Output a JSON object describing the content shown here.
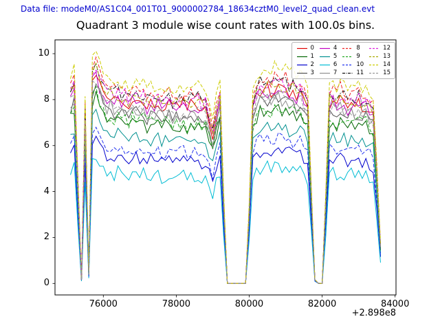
{
  "header": {
    "data_file_text": "Data file: modeM0/AS1C04_001T01_9000002784_18634cztM0_level2_quad_clean.evt",
    "data_file_color": "#0000cd"
  },
  "chart_data": {
    "type": "line",
    "title": "Quadrant 3 module wise count rates with 100.0s bins.",
    "xlabel": "",
    "ylabel": "",
    "x_offset_text": "+2.898e8",
    "xticks": [
      76000,
      78000,
      80000,
      82000,
      84000
    ],
    "yticks": [
      0,
      2,
      4,
      6,
      8,
      10
    ],
    "xlim": [
      74675,
      84025
    ],
    "ylim": [
      -0.5,
      10.6
    ],
    "grid": false,
    "legend_position": "upper right",
    "legend_columns": 4,
    "x_start": 75100,
    "x_step": 100,
    "noise_amplitude": 0.3,
    "profile": [
      1.02,
      1.06,
      0.55,
      0.02,
      0.9,
      0.05,
      1.12,
      1.16,
      1.08,
      1.03,
      1.0,
      1.02,
      0.99,
      1.01,
      0.98,
      1.0,
      0.97,
      1.0,
      0.99,
      0.97,
      0.99,
      0.96,
      0.98,
      0.97,
      0.99,
      0.96,
      0.97,
      0.98,
      0.95,
      0.97,
      0.96,
      0.98,
      0.95,
      0.97,
      0.96,
      0.97,
      0.95,
      0.96,
      0.88,
      0.8,
      0.92,
      1.0,
      0.45,
      0.0,
      0.0,
      0.0,
      0.0,
      0.0,
      0.0,
      0.4,
      0.95,
      1.02,
      1.05,
      1.03,
      1.06,
      1.04,
      1.07,
      1.08,
      1.05,
      1.06,
      1.03,
      1.05,
      1.02,
      1.04,
      1.0,
      0.95,
      0.5,
      0.02,
      0.0,
      0.0,
      0.45,
      0.98,
      1.0,
      0.97,
      1.0,
      0.98,
      0.96,
      0.99,
      0.97,
      0.98,
      0.96,
      0.97,
      0.95,
      0.92,
      0.6,
      0.2
    ],
    "series": [
      {
        "name": "0",
        "color": "#dd0000",
        "style": "solid",
        "level": 8.0
      },
      {
        "name": "1",
        "color": "#006400",
        "style": "solid",
        "level": 7.1
      },
      {
        "name": "2",
        "color": "#0000cd",
        "style": "solid",
        "level": 5.5
      },
      {
        "name": "3",
        "color": "#505050",
        "style": "solid",
        "level": 7.5
      },
      {
        "name": "4",
        "color": "#c000c0",
        "style": "solid",
        "level": 7.9
      },
      {
        "name": "5",
        "color": "#009090",
        "style": "solid",
        "level": 6.4
      },
      {
        "name": "6",
        "color": "#00bcd4",
        "style": "solid",
        "level": 4.8
      },
      {
        "name": "7",
        "color": "#909090",
        "style": "solid",
        "level": 7.6
      },
      {
        "name": "8",
        "color": "#ee2222",
        "style": "dashed",
        "level": 8.5
      },
      {
        "name": "9",
        "color": "#22aa22",
        "style": "dashed",
        "level": 7.2
      },
      {
        "name": "10",
        "color": "#2233ee",
        "style": "dashed",
        "level": 5.9
      },
      {
        "name": "11",
        "color": "#111111",
        "style": "dashdot",
        "level": 8.3
      },
      {
        "name": "12",
        "color": "#dd22dd",
        "style": "dashed",
        "level": 8.2
      },
      {
        "name": "13",
        "color": "#aaaa00",
        "style": "dashed",
        "level": 8.1
      },
      {
        "name": "14",
        "color": "#cccc00",
        "style": "dashed",
        "level": 8.8
      },
      {
        "name": "15",
        "color": "#999999",
        "style": "dashed",
        "level": 7.7
      }
    ]
  }
}
